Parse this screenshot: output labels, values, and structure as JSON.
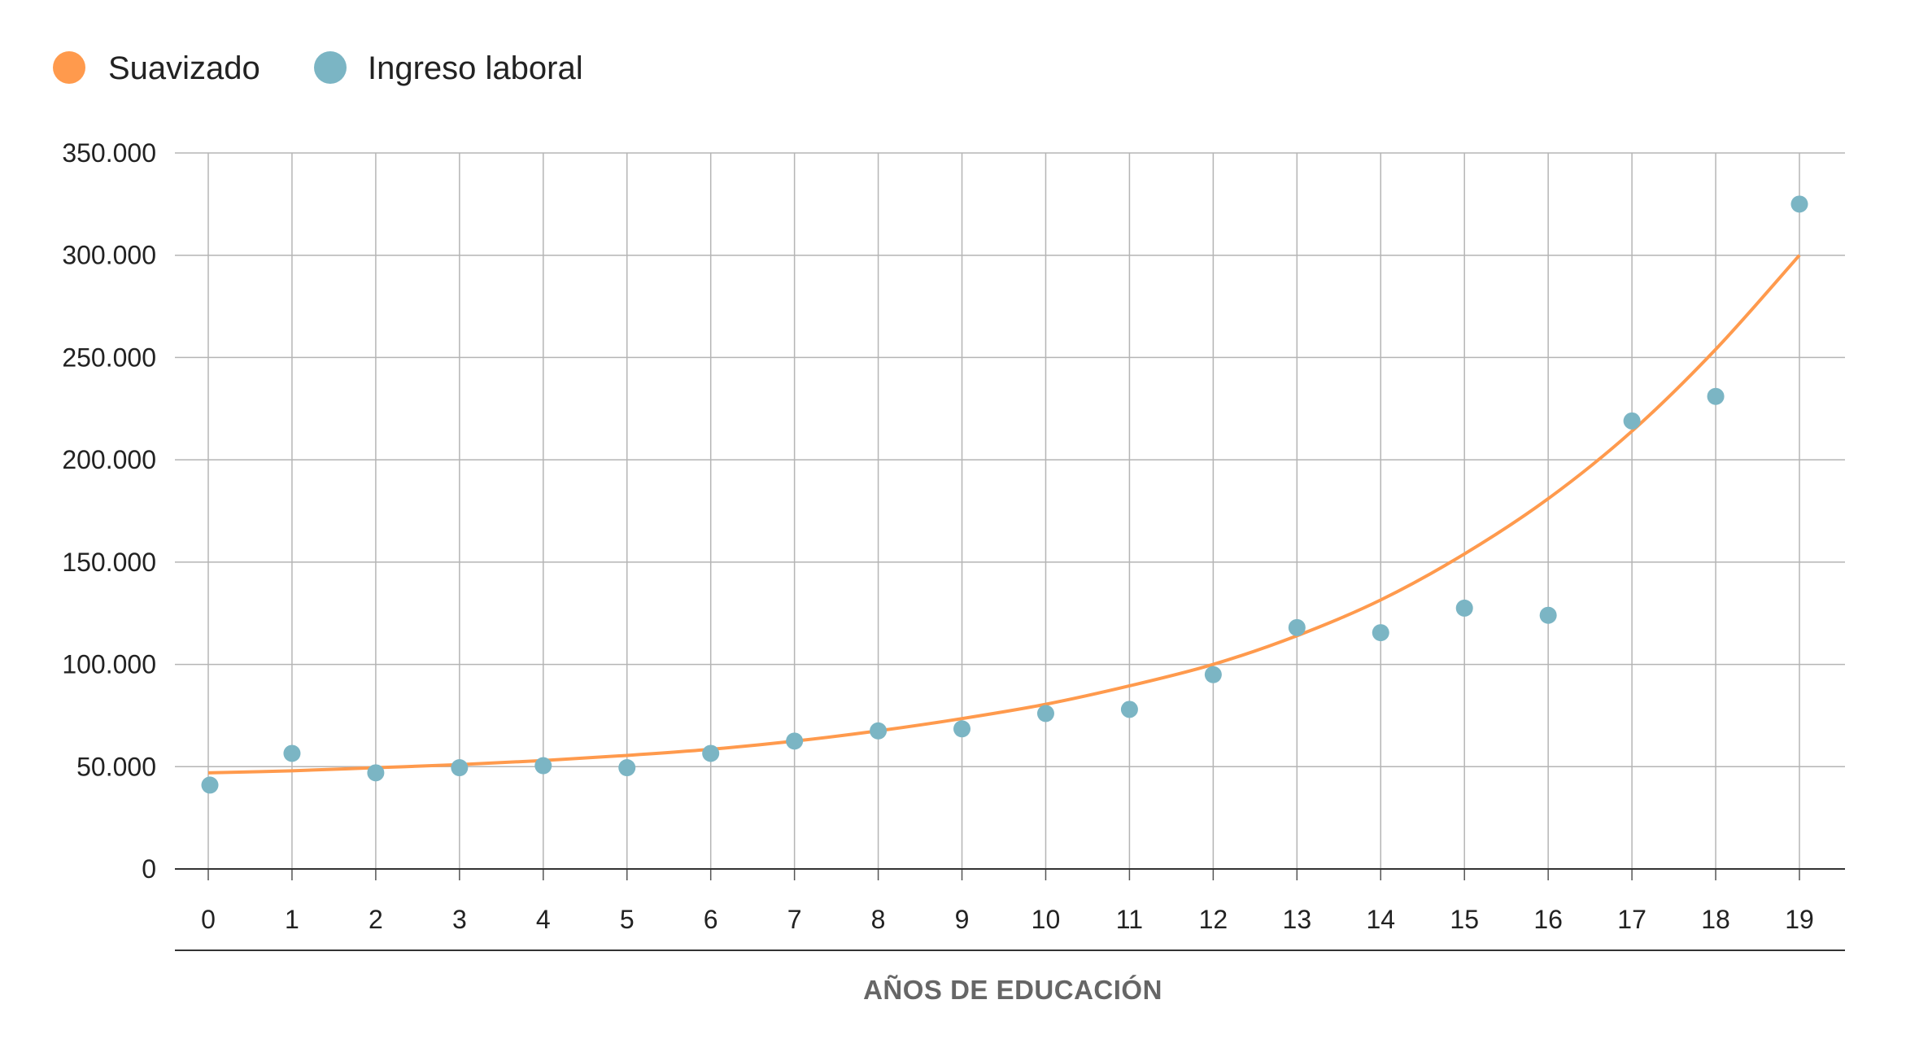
{
  "chart_data": {
    "type": "scatter",
    "xlabel": "AÑOS DE EDUCACIÓN",
    "ylabel": "",
    "title": "",
    "x": [
      0,
      1,
      2,
      3,
      4,
      5,
      6,
      7,
      8,
      9,
      10,
      11,
      12,
      13,
      14,
      15,
      16,
      17,
      18,
      19
    ],
    "xlim": [
      0,
      19
    ],
    "ylim": [
      0,
      350000
    ],
    "y_ticks": [
      0,
      50000,
      100000,
      150000,
      200000,
      250000,
      300000,
      350000
    ],
    "y_tick_labels": [
      "0",
      "50.000",
      "100.000",
      "150.000",
      "200.000",
      "250.000",
      "300.000",
      "350.000"
    ],
    "x_tick_labels": [
      "0",
      "1",
      "2",
      "3",
      "4",
      "5",
      "6",
      "7",
      "8",
      "9",
      "10",
      "11",
      "12",
      "13",
      "14",
      "15",
      "16",
      "17",
      "18",
      "19"
    ],
    "grid": true,
    "legend_position": "top-left",
    "series": [
      {
        "name": "Suavizado",
        "kind": "line",
        "color": "#FF9A4D",
        "values": [
          47000,
          48000,
          49500,
          51000,
          53000,
          55500,
          58500,
          62500,
          67500,
          73500,
          80500,
          89500,
          100000,
          114000,
          131500,
          154000,
          181000,
          214000,
          254000,
          300000
        ]
      },
      {
        "name": "Ingreso laboral",
        "kind": "scatter",
        "color": "#7BB5C4",
        "values": [
          41000,
          56500,
          47000,
          49500,
          50500,
          49500,
          56500,
          62500,
          67500,
          68500,
          76000,
          78000,
          95000,
          118000,
          115500,
          127500,
          124000,
          219000,
          231000,
          325000
        ]
      }
    ]
  }
}
